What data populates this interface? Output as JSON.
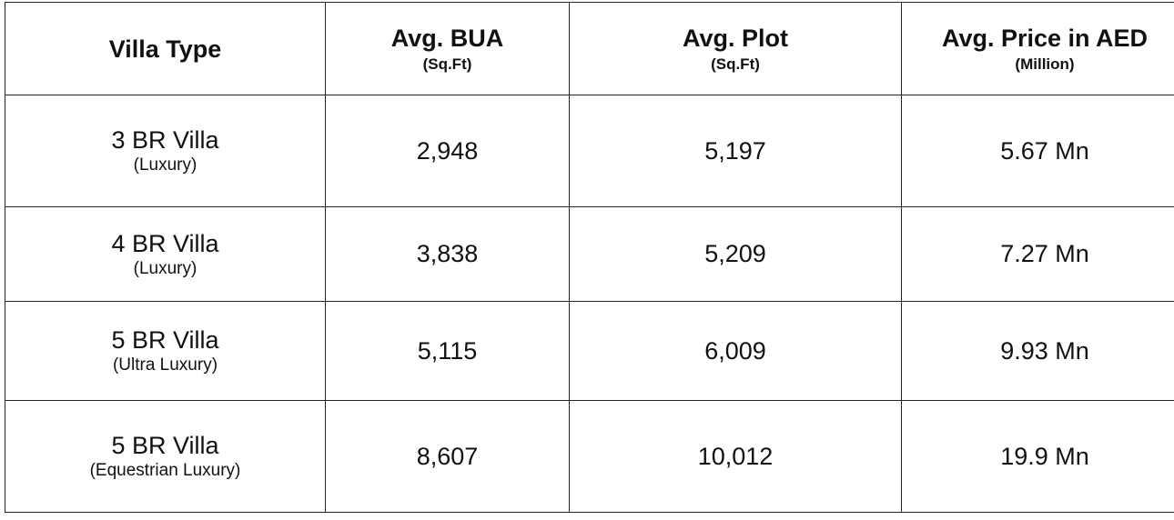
{
  "header": {
    "columns": [
      {
        "title": "Villa Type"
      },
      {
        "title": "Avg. BUA",
        "unit": "(Sq.Ft)"
      },
      {
        "title": "Avg. Plot",
        "unit": "(Sq.Ft)"
      },
      {
        "title": "Avg. Price in AED",
        "unit": "(Million)"
      }
    ]
  },
  "table": {
    "rows": [
      {
        "type": "3 BR Villa",
        "grade": "(Luxury)",
        "bua": "2,948",
        "plot": "5,197",
        "price": "5.67 Mn"
      },
      {
        "type": "4 BR Villa",
        "grade": "(Luxury)",
        "bua": "3,838",
        "plot": "5,209",
        "price": "7.27 Mn"
      },
      {
        "type": "5 BR Villa",
        "grade": "(Ultra Luxury)",
        "bua": "5,115",
        "plot": "6,009",
        "price": "9.93 Mn"
      },
      {
        "type": "5 BR Villa",
        "grade": "(Equestrian Luxury)",
        "bua": "8,607",
        "plot": "10,012",
        "price": "19.9 Mn"
      }
    ]
  }
}
